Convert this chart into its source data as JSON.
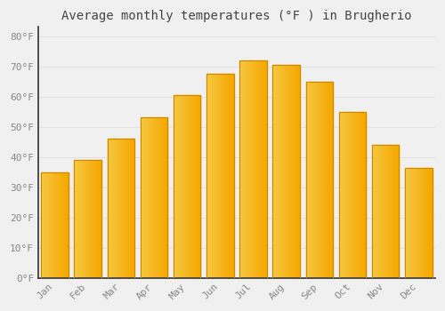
{
  "title": "Average monthly temperatures (°F ) in Brugherio",
  "months": [
    "Jan",
    "Feb",
    "Mar",
    "Apr",
    "May",
    "Jun",
    "Jul",
    "Aug",
    "Sep",
    "Oct",
    "Nov",
    "Dec"
  ],
  "values": [
    35,
    39,
    46,
    53,
    60.5,
    67.5,
    72,
    70.5,
    65,
    55,
    44,
    36.5
  ],
  "bar_color_left": "#F5C842",
  "bar_color_right": "#F5A800",
  "bar_edge_color": "#CC8800",
  "background_color": "#F0F0F0",
  "grid_color": "#E0E0E0",
  "text_color": "#888888",
  "spine_color": "#333333",
  "ylim": [
    0,
    83
  ],
  "yticks": [
    0,
    10,
    20,
    30,
    40,
    50,
    60,
    70,
    80
  ],
  "ytick_labels": [
    "0°F",
    "10°F",
    "20°F",
    "30°F",
    "40°F",
    "50°F",
    "60°F",
    "70°F",
    "80°F"
  ],
  "title_fontsize": 10,
  "tick_fontsize": 8,
  "font_family": "monospace"
}
